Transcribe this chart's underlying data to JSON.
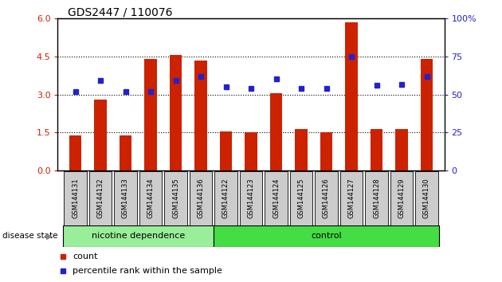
{
  "title": "GDS2447 / 110076",
  "categories": [
    "GSM144131",
    "GSM144132",
    "GSM144133",
    "GSM144134",
    "GSM144135",
    "GSM144136",
    "GSM144122",
    "GSM144123",
    "GSM144124",
    "GSM144125",
    "GSM144126",
    "GSM144127",
    "GSM144128",
    "GSM144129",
    "GSM144130"
  ],
  "red_bars": [
    1.4,
    2.8,
    1.4,
    4.4,
    4.55,
    4.35,
    1.55,
    1.5,
    3.05,
    1.65,
    1.5,
    5.85,
    1.65,
    1.65,
    4.4
  ],
  "blue_dots": [
    3.1,
    3.55,
    3.1,
    3.1,
    3.55,
    3.7,
    3.3,
    3.25,
    3.6,
    3.25,
    3.25,
    4.5,
    3.35,
    3.4,
    3.7
  ],
  "group1_label": "nicotine dependence",
  "group2_label": "control",
  "disease_state_label": "disease state",
  "ylim_left": [
    0,
    6
  ],
  "yticks_left": [
    0,
    1.5,
    3.0,
    4.5,
    6
  ],
  "ylim_right": [
    0,
    100
  ],
  "yticks_right": [
    0,
    25,
    50,
    75,
    100
  ],
  "bar_color": "#cc2200",
  "dot_color": "#2222cc",
  "group1_bg": "#99ee99",
  "group2_bg": "#44dd44",
  "tick_label_bg": "#cccccc",
  "legend_count_label": "count",
  "legend_pct_label": "percentile rank within the sample",
  "bar_width": 0.5,
  "bg_color": "#ffffff"
}
